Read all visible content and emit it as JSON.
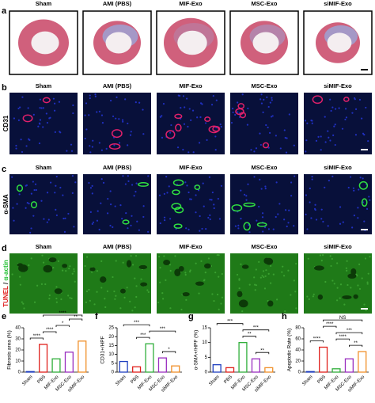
{
  "figure": {
    "panel_letters": [
      "a",
      "b",
      "c",
      "d",
      "e",
      "f",
      "g",
      "h"
    ],
    "groups": [
      "Sham",
      "AMI (PBS)",
      "MIF-Exo",
      "MSC-Exo",
      "siMIF-Exo"
    ],
    "row_labels": {
      "b": "CD31",
      "c": "α-SMA",
      "d_red": "TUNEL",
      "d_sep": " / ",
      "d_green": "α-actin"
    }
  },
  "chart_data": [
    {
      "type": "bar",
      "y_label": "Fibrosis area (%)",
      "categories": [
        "Sham",
        "PBS",
        "MIF-Exo",
        "MSC-Exo",
        "siMIF-Exo"
      ],
      "colors": [
        "#1f3fbf",
        "#e0201b",
        "#2fae3a",
        "#9a2fc0",
        "#f0902a"
      ],
      "values": [
        0.5,
        25,
        12,
        18,
        28
      ],
      "ylim": [
        0,
        40
      ],
      "yticks": [
        0,
        10,
        20,
        30,
        40
      ],
      "significance": [
        {
          "label": "****",
          "between": [
            "Sham",
            "PBS"
          ]
        },
        {
          "label": "****",
          "between": [
            "PBS",
            "MIF-Exo"
          ]
        },
        {
          "label": "*",
          "between": [
            "MIF-Exo",
            "MSC-Exo"
          ]
        },
        {
          "label": "**",
          "between": [
            "MSC-Exo",
            "siMIF-Exo"
          ]
        },
        {
          "label": "****",
          "between": [
            "PBS",
            "siMIF-Exo"
          ]
        }
      ]
    },
    {
      "type": "bar",
      "y_label": "CD31+/HPF",
      "categories": [
        "Sham",
        "PBS",
        "MIF-Exo",
        "MSC-Exo",
        "siMIF-Exo"
      ],
      "colors": [
        "#1f3fbf",
        "#e0201b",
        "#2fae3a",
        "#9a2fc0",
        "#f0902a"
      ],
      "values": [
        6,
        3,
        16,
        8,
        3.5
      ],
      "ylim": [
        0,
        25
      ],
      "yticks": [
        0,
        5,
        10,
        15,
        20,
        25
      ],
      "significance": [
        {
          "label": "*",
          "between": [
            "MSC-Exo",
            "siMIF-Exo"
          ]
        },
        {
          "label": "***",
          "between": [
            "PBS",
            "MIF-Exo"
          ]
        },
        {
          "label": "***",
          "between": [
            "MIF-Exo",
            "siMIF-Exo"
          ]
        },
        {
          "label": "***",
          "between": [
            "Sham",
            "MIF-Exo"
          ]
        }
      ]
    },
    {
      "type": "bar",
      "y_label": "α-SMA+/HPF (%)",
      "categories": [
        "Sham",
        "PBS",
        "MIF-Exo",
        "MSC-Exo",
        "siMIF-Exo"
      ],
      "colors": [
        "#1f3fbf",
        "#e0201b",
        "#2fae3a",
        "#9a2fc0",
        "#f0902a"
      ],
      "values": [
        2.5,
        1.5,
        10,
        4.5,
        1.5
      ],
      "ylim": [
        0,
        15
      ],
      "yticks": [
        0,
        5,
        10,
        15
      ],
      "significance": [
        {
          "label": "**",
          "between": [
            "MSC-Exo",
            "siMIF-Exo"
          ]
        },
        {
          "label": "**",
          "between": [
            "MIF-Exo",
            "MSC-Exo"
          ]
        },
        {
          "label": "***",
          "between": [
            "MIF-Exo",
            "siMIF-Exo"
          ]
        },
        {
          "label": "***",
          "between": [
            "Sham",
            "MIF-Exo"
          ]
        }
      ]
    },
    {
      "type": "bar",
      "y_label": "Apoptotic Rate (%)",
      "categories": [
        "Sham",
        "PBS",
        "MIF-Exo",
        "MSC-Exo",
        "siMIF-Exo"
      ],
      "colors": [
        "#1f3fbf",
        "#e0201b",
        "#2fae3a",
        "#9a2fc0",
        "#f0902a"
      ],
      "values": [
        1,
        45,
        6,
        24,
        37
      ],
      "ylim": [
        0,
        80
      ],
      "yticks": [
        0,
        20,
        40,
        60,
        80
      ],
      "significance": [
        {
          "label": "****",
          "between": [
            "Sham",
            "PBS"
          ]
        },
        {
          "label": "**",
          "between": [
            "MSC-Exo",
            "siMIF-Exo"
          ]
        },
        {
          "label": "****",
          "between": [
            "MIF-Exo",
            "MSC-Exo"
          ]
        },
        {
          "label": "***",
          "between": [
            "MIF-Exo",
            "siMIF-Exo"
          ]
        },
        {
          "label": "****",
          "between": [
            "PBS",
            "MIF-Exo"
          ]
        },
        {
          "label": "NS",
          "between": [
            "PBS",
            "siMIF-Exo"
          ]
        }
      ]
    }
  ]
}
